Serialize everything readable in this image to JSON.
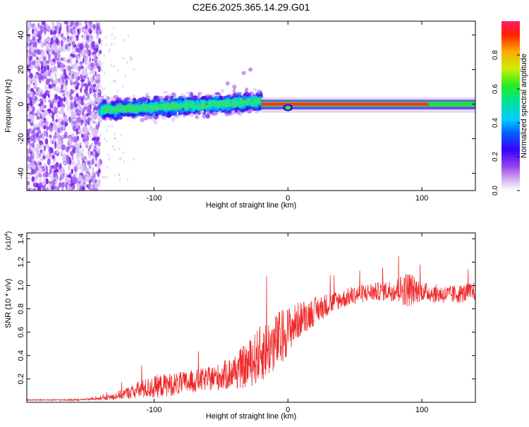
{
  "title": "C2E6.2025.365.14.29.G01",
  "chart_data": [
    {
      "type": "heatmap",
      "xlabel": "Height of straight line (km)",
      "ylabel": "Frequency (Hz)",
      "xlim": [
        -195,
        140
      ],
      "ylim": [
        -50,
        48
      ],
      "xticks": [
        -100,
        0,
        100
      ],
      "yticks": [
        -40,
        -20,
        0,
        20,
        40
      ],
      "grid": false,
      "colorbar": {
        "label": "Normalized spectral amplitude",
        "range": [
          0,
          1
        ],
        "ticks": [
          "0.0",
          "0.2",
          "0.4",
          "0.6",
          "0.8"
        ]
      },
      "regions": [
        {
          "name": "scattered noise",
          "x": [
            -195,
            -140
          ],
          "freq": [
            -50,
            48
          ],
          "amplitude": 0.15
        },
        {
          "name": "noisy band",
          "x": [
            -140,
            -20
          ],
          "freq": [
            -10,
            6
          ],
          "amplitude": 0.35
        },
        {
          "name": "tone",
          "x": [
            -20,
            140
          ],
          "freq": [
            -2,
            1
          ],
          "amplitude": 0.95
        }
      ]
    },
    {
      "type": "line",
      "xlabel": "Height of straight line (km)",
      "ylabel": "SNR (10 * v/v)",
      "yscale_label": "(x10",
      "yscale_exp": "4",
      "xlim": [
        -195,
        140
      ],
      "ylim": [
        0,
        1.45
      ],
      "xticks": [
        -100,
        0,
        100
      ],
      "yticks": [
        0.2,
        0.4,
        0.6,
        0.8,
        1.0,
        1.2,
        1.4
      ],
      "color": "#ee2a2a",
      "series": [
        {
          "name": "SNR",
          "x": [
            -195,
            -180,
            -160,
            -140,
            -130,
            -120,
            -110,
            -100,
            -90,
            -80,
            -70,
            -60,
            -50,
            -40,
            -30,
            -20,
            -10,
            -5,
            0,
            10,
            20,
            30,
            40,
            50,
            60,
            70,
            80,
            90,
            100,
            110,
            120,
            130,
            140
          ],
          "values": [
            0.02,
            0.02,
            0.02,
            0.03,
            0.05,
            0.08,
            0.11,
            0.13,
            0.15,
            0.16,
            0.18,
            0.2,
            0.22,
            0.26,
            0.32,
            0.42,
            0.5,
            0.55,
            0.62,
            0.72,
            0.78,
            0.84,
            0.88,
            0.92,
            0.94,
            0.95,
            0.96,
            0.97,
            0.95,
            0.93,
            0.92,
            0.93,
            0.95
          ],
          "noise": [
            0.005,
            0.005,
            0.005,
            0.01,
            0.03,
            0.05,
            0.08,
            0.1,
            0.1,
            0.1,
            0.1,
            0.1,
            0.12,
            0.15,
            0.2,
            0.25,
            0.25,
            0.25,
            0.2,
            0.15,
            0.12,
            0.1,
            0.08,
            0.08,
            0.08,
            0.08,
            0.1,
            0.16,
            0.08,
            0.08,
            0.08,
            0.08,
            0.08
          ]
        }
      ]
    }
  ]
}
